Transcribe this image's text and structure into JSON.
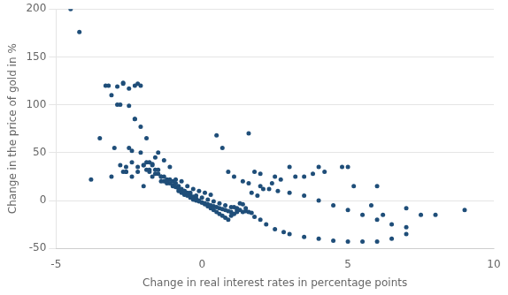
{
  "chart_data": {
    "type": "scatter",
    "xlabel": "Change in real interest rates in percentage points",
    "ylabel": "Change in the price of gold in %",
    "xlim": [
      -5,
      10
    ],
    "ylim": [
      -50,
      200
    ],
    "xticks": [
      -5,
      0,
      5,
      10
    ],
    "yticks": [
      -50,
      0,
      50,
      100,
      150,
      200
    ],
    "grid": "y",
    "color": "#1F4E79",
    "x": [
      -4.5,
      -3.8,
      -3.2,
      -3.0,
      -2.8,
      -2.7,
      -2.6,
      -2.5,
      -2.4,
      -2.3,
      -2.2,
      -2.1,
      -2.0,
      -1.9,
      -1.8,
      -1.7,
      -1.6,
      -1.5,
      -1.4,
      -1.3,
      -1.2,
      -1.1,
      -1.0,
      -0.9,
      -0.8,
      -0.7,
      -0.6,
      -0.5,
      -0.4,
      -0.3,
      -0.2,
      -0.1,
      0.0,
      0.1,
      0.2,
      0.3,
      0.4,
      0.5,
      0.6,
      0.7,
      0.8,
      0.9,
      1.0,
      1.1,
      1.2,
      1.3,
      1.4,
      1.5,
      1.6,
      1.7,
      1.8,
      2.0,
      2.2,
      2.5,
      2.8,
      3.0,
      3.5,
      4.0,
      4.5,
      5.0,
      5.5,
      6.0,
      6.5,
      7.0,
      8.0,
      9.0,
      -4.2,
      -3.5,
      -3.1,
      -2.9,
      -2.8,
      -2.7,
      -2.6,
      -2.5,
      -2.4,
      -2.3,
      -2.2,
      -2.1,
      -2.0,
      -1.9,
      -1.8,
      -1.7,
      -1.6,
      -1.5,
      -1.4,
      -1.3,
      -1.2,
      -1.1,
      -1.0,
      -0.9,
      -0.8,
      -0.7,
      -0.6,
      -0.5,
      -0.4,
      -0.3,
      -0.2,
      -0.1,
      0.0,
      0.1,
      0.2,
      0.3,
      0.4,
      0.5,
      0.6,
      0.7,
      0.8,
      0.9,
      1.0,
      1.1,
      1.2,
      1.3,
      1.5,
      1.7,
      1.9,
      2.1,
      2.4,
      2.7,
      3.2,
      3.8,
      4.2,
      4.8,
      5.2,
      5.8,
      6.2,
      7.5,
      -3.3,
      -2.9,
      -2.7,
      -2.5,
      -2.3,
      -2.1,
      -1.9,
      -1.7,
      -1.5,
      -1.3,
      -1.1,
      -0.9,
      -0.7,
      -0.5,
      -0.3,
      -0.1,
      0.1,
      0.3,
      0.5,
      0.7,
      0.9,
      1.1,
      1.4,
      1.6,
      2.0,
      2.3,
      2.6,
      3.0,
      3.5,
      4.0,
      4.5,
      5.0,
      5.5,
      6.0,
      6.5,
      7.0,
      -3.1,
      -2.6,
      -2.4,
      -2.2,
      -2.0,
      -1.8,
      -1.6,
      -1.4,
      -1.2,
      -1.0,
      -0.8,
      -0.6,
      -0.4,
      -0.2,
      0.0,
      0.2,
      0.4,
      0.6,
      0.8,
      1.0,
      1.2,
      1.4,
      1.6,
      1.8,
      2.0,
      2.5,
      3.0,
      3.5,
      4.0,
      5.0,
      6.0,
      7.0
    ],
    "values": [
      200,
      22,
      120,
      55,
      100,
      123,
      30,
      55,
      25,
      85,
      35,
      50,
      37,
      32,
      30,
      38,
      32,
      28,
      25,
      20,
      22,
      18,
      16,
      14,
      10,
      8,
      6,
      5,
      3,
      1,
      0,
      -1,
      -2,
      -3,
      -4,
      -5,
      -6,
      -7,
      -8,
      -9,
      -10,
      -11,
      -12,
      -7,
      -8,
      -3,
      -4,
      -11,
      -12,
      -13,
      -17,
      -20,
      -25,
      -30,
      -33,
      -35,
      -38,
      -40,
      -42,
      -43,
      -43,
      -43,
      -40,
      -35,
      -15,
      -10,
      176,
      65,
      25,
      119,
      37,
      30,
      35,
      117,
      40,
      120,
      30,
      77,
      15,
      40,
      32,
      25,
      28,
      32,
      20,
      25,
      18,
      22,
      20,
      18,
      15,
      12,
      10,
      8,
      6,
      4,
      2,
      0,
      -2,
      -4,
      -6,
      -8,
      -10,
      -12,
      -14,
      -16,
      -18,
      -20,
      -16,
      -14,
      -12,
      -10,
      -8,
      8,
      5,
      12,
      18,
      22,
      25,
      28,
      30,
      35,
      15,
      -5,
      -15,
      -15,
      120,
      100,
      122,
      99,
      85,
      120,
      65,
      37,
      50,
      42,
      35,
      22,
      20,
      15,
      12,
      10,
      8,
      6,
      68,
      55,
      30,
      25,
      20,
      18,
      15,
      12,
      10,
      8,
      5,
      0,
      -5,
      -10,
      -15,
      -20,
      -25,
      -28,
      110,
      30,
      52,
      122,
      37,
      40,
      45,
      25,
      20,
      15,
      12,
      10,
      8,
      5,
      3,
      1,
      -1,
      -3,
      -5,
      -7,
      -10,
      -12,
      70,
      30,
      28,
      25,
      35,
      25,
      35,
      35,
      15,
      -8
    ]
  }
}
